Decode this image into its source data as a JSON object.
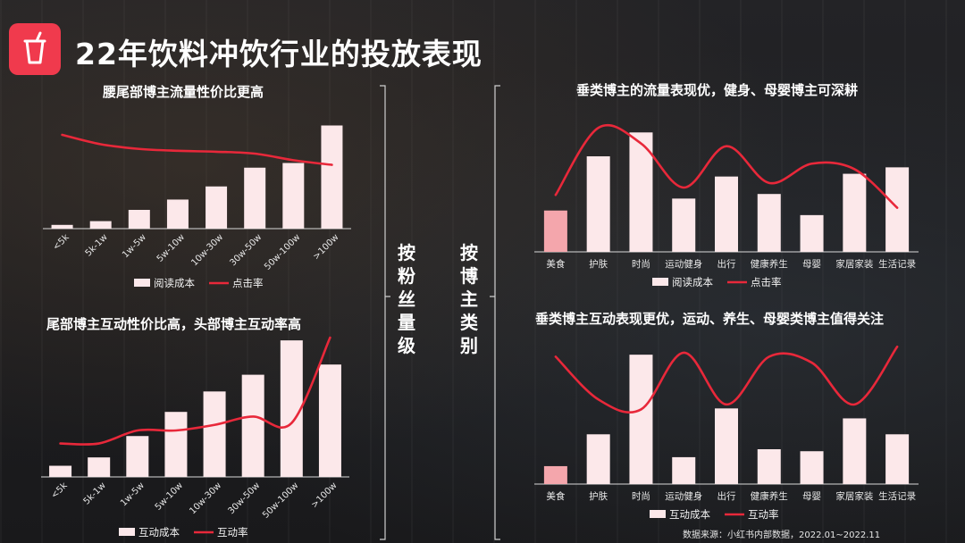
{
  "title": "22年饮料冲饮行业的投放表现",
  "left_label": "按粉丝量级",
  "right_label": "按博主类别",
  "source": "数据来源：小红书内部数据，2022.01~2022.11",
  "colors": {
    "accent": "#f03a4d",
    "bar": "#fce8ea",
    "bar_highlight": "#f4a6ac",
    "line": "#e8283a"
  },
  "icons": {
    "header": "drink-cup-icon"
  },
  "chart_data": [
    {
      "type": "bar",
      "title": "腰尾部博主流量性价比更高",
      "categories": [
        "<5k",
        "5k-1w",
        "1w-5w",
        "5w-10w",
        "10w-30w",
        "30w-50w",
        "50w-100w",
        ">100w"
      ],
      "series": [
        {
          "name": "阅读成本",
          "kind": "bar",
          "values": [
            4,
            8,
            20,
            31,
            45,
            65,
            70,
            110
          ]
        },
        {
          "name": "点击率",
          "kind": "line",
          "values": [
            100,
            90,
            85,
            83,
            82,
            80,
            73,
            68
          ]
        }
      ],
      "ylim": [
        0,
        120
      ],
      "legend": "bottom",
      "grid": false
    },
    {
      "type": "bar",
      "title": "尾部博主互动性价比高，头部博主互动率高",
      "categories": [
        "<5k",
        "5k-1w",
        "1w-5w",
        "5w-10w",
        "10w-30w",
        "30w-50w",
        "50w-100w",
        ">100w"
      ],
      "series": [
        {
          "name": "互动成本",
          "kind": "bar",
          "values": [
            12,
            21,
            44,
            70,
            92,
            110,
            147,
            121
          ]
        },
        {
          "name": "互动率",
          "kind": "line",
          "values": [
            36,
            36,
            50,
            50,
            56,
            65,
            58,
            150
          ]
        }
      ],
      "ylim": [
        0,
        150
      ],
      "legend": "bottom",
      "grid": false
    },
    {
      "type": "bar",
      "title": "垂类博主的流量表现优，健身、母婴博主可深耕",
      "categories": [
        "美食",
        "护肤",
        "时尚",
        "运动健身",
        "出行",
        "健康养生",
        "母婴",
        "家居家装",
        "生活记录"
      ],
      "series": [
        {
          "name": "阅读成本",
          "kind": "bar",
          "values": [
            45,
            104,
            130,
            58,
            82,
            63,
            40,
            85,
            92
          ]
        },
        {
          "name": "点击率",
          "kind": "line",
          "values": [
            62,
            135,
            118,
            70,
            115,
            75,
            96,
            90,
            48
          ]
        }
      ],
      "highlight_index": 0,
      "ylim": [
        0,
        140
      ],
      "legend": "bottom",
      "grid": false
    },
    {
      "type": "bar",
      "title": "垂类博主互动表现更优，运动、养生、母婴类博主值得关注",
      "categories": [
        "美食",
        "护肤",
        "时尚",
        "运动健身",
        "出行",
        "健康养生",
        "母婴",
        "家居家装",
        "生活记录"
      ],
      "series": [
        {
          "name": "互动成本",
          "kind": "bar",
          "values": [
            18,
            50,
            130,
            27,
            76,
            35,
            33,
            66,
            50
          ]
        },
        {
          "name": "互动率",
          "kind": "line",
          "values": [
            128,
            85,
            75,
            132,
            80,
            128,
            122,
            80,
            138
          ]
        }
      ],
      "highlight_index": 0,
      "ylim": [
        0,
        140
      ],
      "legend": "bottom",
      "grid": false
    }
  ]
}
